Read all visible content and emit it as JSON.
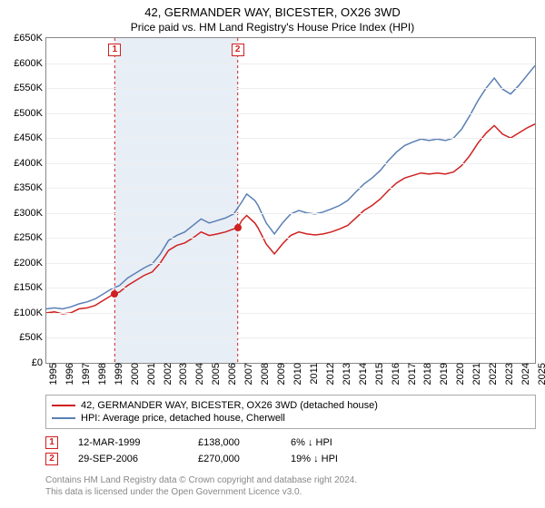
{
  "title": "42, GERMANDER WAY, BICESTER, OX26 3WD",
  "subtitle": "Price paid vs. HM Land Registry's House Price Index (HPI)",
  "chart": {
    "type": "line",
    "ylim": [
      0,
      650000
    ],
    "ytick_step": 50000,
    "ytick_labels": [
      "£0",
      "£50K",
      "£100K",
      "£150K",
      "£200K",
      "£250K",
      "£300K",
      "£350K",
      "£400K",
      "£450K",
      "£500K",
      "£550K",
      "£600K",
      "£650K"
    ],
    "xlim": [
      1995,
      2025
    ],
    "xtick_step": 1,
    "xtick_labels": [
      "1995",
      "1996",
      "1997",
      "1998",
      "1999",
      "2000",
      "2001",
      "2002",
      "2003",
      "2004",
      "2005",
      "2006",
      "2007",
      "2008",
      "2009",
      "2010",
      "2011",
      "2012",
      "2013",
      "2014",
      "2015",
      "2016",
      "2017",
      "2018",
      "2019",
      "2020",
      "2021",
      "2022",
      "2023",
      "2024",
      "2025"
    ],
    "background_color": "#ffffff",
    "grid_color": "#eeeeee",
    "band_color": "#e8eef5",
    "band_ranges": [
      [
        1999.2,
        2006.75
      ]
    ],
    "dashed_line_color": "#d02020",
    "dashed_x": [
      1999.2,
      2006.75
    ],
    "series": [
      {
        "name": "price_paid",
        "label": "42, GERMANDER WAY, BICESTER, OX26 3WD (detached house)",
        "color": "#d02020",
        "line_width": 1.5,
        "points": [
          [
            1995,
            100000
          ],
          [
            1995.5,
            102000
          ],
          [
            1996,
            98000
          ],
          [
            1996.5,
            100000
          ],
          [
            1997,
            108000
          ],
          [
            1997.5,
            110000
          ],
          [
            1998,
            115000
          ],
          [
            1998.5,
            125000
          ],
          [
            1999,
            135000
          ],
          [
            1999.2,
            138000
          ],
          [
            1999.5,
            142000
          ],
          [
            2000,
            155000
          ],
          [
            2000.5,
            165000
          ],
          [
            2001,
            175000
          ],
          [
            2001.5,
            182000
          ],
          [
            2002,
            200000
          ],
          [
            2002.5,
            225000
          ],
          [
            2003,
            235000
          ],
          [
            2003.5,
            240000
          ],
          [
            2004,
            250000
          ],
          [
            2004.5,
            262000
          ],
          [
            2005,
            255000
          ],
          [
            2005.5,
            258000
          ],
          [
            2006,
            262000
          ],
          [
            2006.5,
            268000
          ],
          [
            2006.75,
            270000
          ],
          [
            2007,
            285000
          ],
          [
            2007.3,
            295000
          ],
          [
            2007.8,
            280000
          ],
          [
            2008,
            270000
          ],
          [
            2008.5,
            238000
          ],
          [
            2009,
            218000
          ],
          [
            2009.5,
            238000
          ],
          [
            2010,
            255000
          ],
          [
            2010.5,
            262000
          ],
          [
            2011,
            258000
          ],
          [
            2011.5,
            256000
          ],
          [
            2012,
            258000
          ],
          [
            2012.5,
            262000
          ],
          [
            2013,
            268000
          ],
          [
            2013.5,
            275000
          ],
          [
            2014,
            290000
          ],
          [
            2014.5,
            305000
          ],
          [
            2015,
            315000
          ],
          [
            2015.5,
            328000
          ],
          [
            2016,
            345000
          ],
          [
            2016.5,
            360000
          ],
          [
            2017,
            370000
          ],
          [
            2017.5,
            375000
          ],
          [
            2018,
            380000
          ],
          [
            2018.5,
            378000
          ],
          [
            2019,
            380000
          ],
          [
            2019.5,
            378000
          ],
          [
            2020,
            382000
          ],
          [
            2020.5,
            395000
          ],
          [
            2021,
            415000
          ],
          [
            2021.5,
            440000
          ],
          [
            2022,
            460000
          ],
          [
            2022.5,
            475000
          ],
          [
            2023,
            458000
          ],
          [
            2023.5,
            450000
          ],
          [
            2024,
            460000
          ],
          [
            2024.5,
            470000
          ],
          [
            2025,
            478000
          ]
        ]
      },
      {
        "name": "hpi",
        "label": "HPI: Average price, detached house, Cherwell",
        "color": "#5a7fb5",
        "line_width": 1.5,
        "points": [
          [
            1995,
            108000
          ],
          [
            1995.5,
            110000
          ],
          [
            1996,
            108000
          ],
          [
            1996.5,
            112000
          ],
          [
            1997,
            118000
          ],
          [
            1997.5,
            122000
          ],
          [
            1998,
            128000
          ],
          [
            1998.5,
            138000
          ],
          [
            1999,
            148000
          ],
          [
            1999.5,
            155000
          ],
          [
            2000,
            170000
          ],
          [
            2000.5,
            180000
          ],
          [
            2001,
            190000
          ],
          [
            2001.5,
            198000
          ],
          [
            2002,
            218000
          ],
          [
            2002.5,
            245000
          ],
          [
            2003,
            255000
          ],
          [
            2003.5,
            262000
          ],
          [
            2004,
            275000
          ],
          [
            2004.5,
            288000
          ],
          [
            2005,
            280000
          ],
          [
            2005.5,
            285000
          ],
          [
            2006,
            290000
          ],
          [
            2006.5,
            298000
          ],
          [
            2007,
            322000
          ],
          [
            2007.3,
            338000
          ],
          [
            2007.8,
            325000
          ],
          [
            2008,
            315000
          ],
          [
            2008.5,
            280000
          ],
          [
            2009,
            258000
          ],
          [
            2009.5,
            280000
          ],
          [
            2010,
            298000
          ],
          [
            2010.5,
            305000
          ],
          [
            2011,
            300000
          ],
          [
            2011.5,
            298000
          ],
          [
            2012,
            302000
          ],
          [
            2012.5,
            308000
          ],
          [
            2013,
            315000
          ],
          [
            2013.5,
            325000
          ],
          [
            2014,
            342000
          ],
          [
            2014.5,
            358000
          ],
          [
            2015,
            370000
          ],
          [
            2015.5,
            385000
          ],
          [
            2016,
            405000
          ],
          [
            2016.5,
            422000
          ],
          [
            2017,
            435000
          ],
          [
            2017.5,
            442000
          ],
          [
            2018,
            448000
          ],
          [
            2018.5,
            445000
          ],
          [
            2019,
            448000
          ],
          [
            2019.5,
            445000
          ],
          [
            2020,
            450000
          ],
          [
            2020.5,
            468000
          ],
          [
            2021,
            495000
          ],
          [
            2021.5,
            525000
          ],
          [
            2022,
            550000
          ],
          [
            2022.5,
            570000
          ],
          [
            2023,
            548000
          ],
          [
            2023.5,
            538000
          ],
          [
            2024,
            555000
          ],
          [
            2024.5,
            575000
          ],
          [
            2025,
            595000
          ]
        ]
      }
    ],
    "markers": [
      {
        "n": "1",
        "x": 1999.2,
        "y": 138000,
        "color": "#d02020"
      },
      {
        "n": "2",
        "x": 2006.75,
        "y": 270000,
        "color": "#d02020"
      }
    ]
  },
  "legend": [
    {
      "color": "#d02020",
      "label": "42, GERMANDER WAY, BICESTER, OX26 3WD (detached house)"
    },
    {
      "color": "#5a7fb5",
      "label": "HPI: Average price, detached house, Cherwell"
    }
  ],
  "sales": [
    {
      "n": "1",
      "color": "#d02020",
      "date": "12-MAR-1999",
      "price": "£138,000",
      "hpi": "6% ↓ HPI"
    },
    {
      "n": "2",
      "color": "#d02020",
      "date": "29-SEP-2006",
      "price": "£270,000",
      "hpi": "19% ↓ HPI"
    }
  ],
  "footer_line1": "Contains HM Land Registry data © Crown copyright and database right 2024.",
  "footer_line2": "This data is licensed under the Open Government Licence v3.0."
}
